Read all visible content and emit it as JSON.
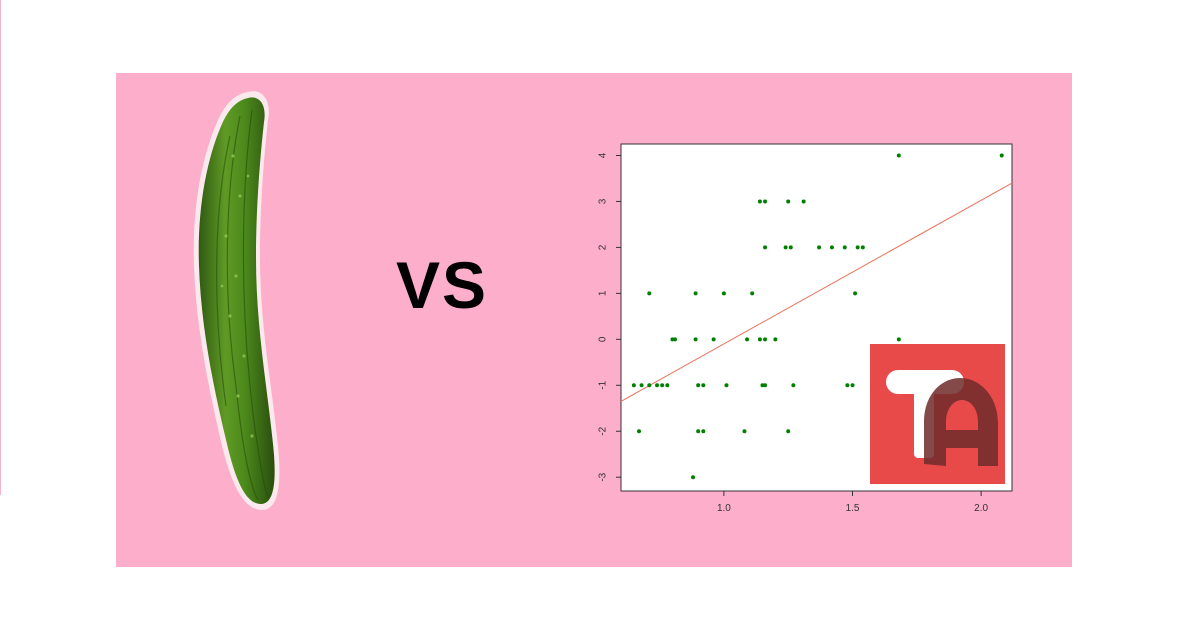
{
  "banner": {
    "background_color": "#fcaecb",
    "left_icon": "cucumber-icon",
    "vs_text": "VS",
    "logo_icon": "ta-logo-icon"
  },
  "chart_data": {
    "type": "scatter",
    "title": "",
    "xlabel": "",
    "ylabel": "",
    "xlim": [
      0.6,
      2.12
    ],
    "ylim": [
      -3.3,
      4.25
    ],
    "x_ticks": [
      1.0,
      1.5,
      2.0
    ],
    "x_tick_labels": [
      "1.0",
      "1.5",
      "2.0"
    ],
    "y_ticks": [
      -3,
      -2,
      -1,
      0,
      1,
      2,
      3,
      4
    ],
    "y_tick_labels": [
      "-3",
      "-2",
      "-1",
      "0",
      "1",
      "2",
      "3",
      "4"
    ],
    "point_color": "#008000",
    "line_color": "#e8735a",
    "grid": false,
    "regression_line": {
      "x": [
        0.6,
        2.12
      ],
      "y": [
        -1.35,
        3.4
      ]
    },
    "points": [
      {
        "x": 1.68,
        "y": 4
      },
      {
        "x": 2.08,
        "y": 4
      },
      {
        "x": 1.14,
        "y": 3
      },
      {
        "x": 1.16,
        "y": 3
      },
      {
        "x": 1.25,
        "y": 3
      },
      {
        "x": 1.31,
        "y": 3
      },
      {
        "x": 1.16,
        "y": 2
      },
      {
        "x": 1.24,
        "y": 2
      },
      {
        "x": 1.26,
        "y": 2
      },
      {
        "x": 1.37,
        "y": 2
      },
      {
        "x": 1.42,
        "y": 2
      },
      {
        "x": 1.47,
        "y": 2
      },
      {
        "x": 1.52,
        "y": 2
      },
      {
        "x": 1.54,
        "y": 2
      },
      {
        "x": 0.71,
        "y": 1
      },
      {
        "x": 0.89,
        "y": 1
      },
      {
        "x": 1.0,
        "y": 1
      },
      {
        "x": 1.11,
        "y": 1
      },
      {
        "x": 1.51,
        "y": 1
      },
      {
        "x": 0.8,
        "y": 0
      },
      {
        "x": 0.81,
        "y": 0
      },
      {
        "x": 0.89,
        "y": 0
      },
      {
        "x": 0.96,
        "y": 0
      },
      {
        "x": 1.09,
        "y": 0
      },
      {
        "x": 1.14,
        "y": 0
      },
      {
        "x": 1.16,
        "y": 0
      },
      {
        "x": 1.2,
        "y": 0
      },
      {
        "x": 1.68,
        "y": 0
      },
      {
        "x": 0.65,
        "y": -1
      },
      {
        "x": 0.68,
        "y": -1
      },
      {
        "x": 0.71,
        "y": -1
      },
      {
        "x": 0.74,
        "y": -1
      },
      {
        "x": 0.76,
        "y": -1
      },
      {
        "x": 0.78,
        "y": -1
      },
      {
        "x": 0.9,
        "y": -1
      },
      {
        "x": 0.92,
        "y": -1
      },
      {
        "x": 1.01,
        "y": -1
      },
      {
        "x": 1.15,
        "y": -1
      },
      {
        "x": 1.16,
        "y": -1
      },
      {
        "x": 1.27,
        "y": -1
      },
      {
        "x": 1.48,
        "y": -1
      },
      {
        "x": 1.5,
        "y": -1
      },
      {
        "x": 0.67,
        "y": -2
      },
      {
        "x": 0.9,
        "y": -2
      },
      {
        "x": 0.92,
        "y": -2
      },
      {
        "x": 1.08,
        "y": -2
      },
      {
        "x": 1.25,
        "y": -2
      },
      {
        "x": 0.88,
        "y": -3
      }
    ]
  }
}
